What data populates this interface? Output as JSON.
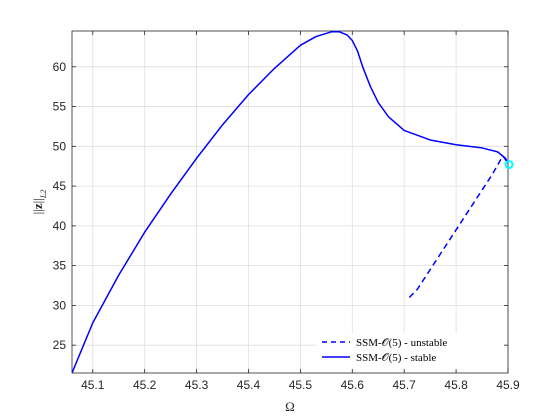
{
  "chart_data": {
    "type": "line",
    "xlabel": "Ω",
    "ylabel": "||z||L2",
    "xlim": [
      45.06,
      45.9
    ],
    "ylim": [
      21.5,
      64.5
    ],
    "xticks": [
      45.1,
      45.2,
      45.3,
      45.4,
      45.5,
      45.6,
      45.7,
      45.8,
      45.9
    ],
    "yticks": [
      25,
      30,
      35,
      40,
      45,
      50,
      55,
      60
    ],
    "grid": true,
    "legend_position": "bottom-right",
    "colors": {
      "series": "#0000ff",
      "marker": "#00ffff",
      "grid": "#dfdfdf",
      "axis": "#262626"
    },
    "series": [
      {
        "name": "SSM-𝒪(5) - unstable",
        "style": "dashed",
        "x": [
          45.71,
          45.725,
          45.75,
          45.78,
          45.81,
          45.84,
          45.87,
          45.89,
          45.902
        ],
        "y": [
          31.0,
          32.0,
          34.5,
          37.5,
          40.5,
          43.5,
          46.5,
          48.8,
          47.7
        ]
      },
      {
        "name": "SSM-𝒪(5) - stable",
        "style": "solid",
        "x": [
          45.06,
          45.1,
          45.15,
          45.2,
          45.25,
          45.3,
          45.35,
          45.4,
          45.45,
          45.5,
          45.53,
          45.56,
          45.575,
          45.59,
          45.6,
          45.61,
          45.62,
          45.635,
          45.65,
          45.67,
          45.7,
          45.75,
          45.8,
          45.85,
          45.88,
          45.895,
          45.902
        ],
        "y": [
          21.5,
          27.8,
          33.8,
          39.2,
          44.0,
          48.5,
          52.7,
          56.5,
          59.8,
          62.7,
          63.8,
          64.4,
          64.4,
          64.0,
          63.3,
          62.0,
          60.0,
          57.5,
          55.5,
          53.7,
          52.0,
          50.8,
          50.2,
          49.8,
          49.3,
          48.5,
          47.7
        ]
      }
    ],
    "marker": {
      "x": 45.902,
      "y": 47.7
    }
  }
}
